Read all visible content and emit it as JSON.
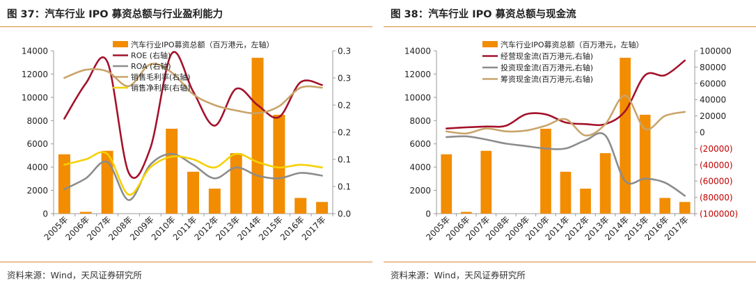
{
  "panels": [
    {
      "figure_title": "图 37：汽车行业 IPO 募资总额与行业盈利能力",
      "source": "资料来源：Wind，天风证券研究所"
    },
    {
      "figure_title": "图 38：汽车行业 IPO 募资总额与现金流",
      "source": "资料来源：Wind，天风证券研究所"
    }
  ],
  "colors": {
    "bar": "#f28c00",
    "rule": "#d88a3a",
    "roe": "#a3112b",
    "roa": "#8c8c8c",
    "gross": "#c8a46a",
    "net": "#f5d000",
    "operating": "#a3112b",
    "investing": "#8c8c8c",
    "financing": "#c8a46a",
    "neg_label": "#c00000"
  },
  "chart_data": [
    {
      "type": "bar",
      "categories": [
        "2005年",
        "2006年",
        "2007年",
        "2008年",
        "2009年",
        "2010年",
        "2011年",
        "2012年",
        "2013年",
        "2014年",
        "2015年",
        "2016年",
        "2017年"
      ],
      "bars": {
        "name": "汽车行业IPO募资总额（百万港元，左轴）",
        "values": [
          5100,
          150,
          5400,
          0,
          0,
          7300,
          3600,
          2150,
          5200,
          13400,
          8500,
          1350,
          1000
        ]
      },
      "lines": [
        {
          "name": "ROE (右轴)",
          "color_key": "roe",
          "values": [
            0.175,
            0.24,
            0.28,
            0.075,
            0.12,
            0.295,
            0.225,
            0.162,
            0.23,
            0.2,
            0.178,
            0.242,
            0.237
          ]
        },
        {
          "name": "ROA (右轴)",
          "color_key": "roa",
          "values": [
            0.045,
            0.065,
            0.095,
            0.025,
            0.09,
            0.11,
            0.09,
            0.065,
            0.085,
            0.07,
            0.065,
            0.075,
            0.07
          ]
        },
        {
          "name": "销售毛利率(右轴)",
          "color_key": "gross",
          "values": [
            0.25,
            0.265,
            0.262,
            0.235,
            0.275,
            0.26,
            0.22,
            0.2,
            0.19,
            0.185,
            0.198,
            0.232,
            0.232
          ]
        },
        {
          "name": "销售净利率(右轴)",
          "color_key": "net",
          "values": [
            0.09,
            0.1,
            0.11,
            0.035,
            0.085,
            0.105,
            0.1,
            0.085,
            0.11,
            0.095,
            0.085,
            0.09,
            0.085
          ]
        }
      ],
      "y_left": {
        "min": 0,
        "max": 14000,
        "ticks": [
          "0",
          "2000",
          "4000",
          "6000",
          "8000",
          "10000",
          "12000",
          "14000"
        ]
      },
      "y_right": {
        "min": 0,
        "max": 0.3,
        "ticks": [
          "0.0",
          "0.1",
          "0.1",
          "0.2",
          "0.2",
          "0.3",
          "0.3"
        ]
      },
      "legend_position": "top-right",
      "grid": false
    },
    {
      "type": "bar",
      "categories": [
        "2005年",
        "2006年",
        "2007年",
        "2008年",
        "2009年",
        "2010年",
        "2011年",
        "2012年",
        "2013年",
        "2014年",
        "2015年",
        "2016年",
        "2017年"
      ],
      "bars": {
        "name": "汽车行业IPO募资总额（百万港元，左轴）",
        "values": [
          5100,
          150,
          5400,
          0,
          0,
          7300,
          3600,
          2150,
          5200,
          13400,
          8500,
          1350,
          1000
        ]
      },
      "lines": [
        {
          "name": "经营现金流(百万港元,右轴)",
          "color_key": "operating",
          "values": [
            4500,
            6000,
            7000,
            8000,
            22000,
            22000,
            12000,
            10000,
            10000,
            26000,
            70000,
            70000,
            88000
          ]
        },
        {
          "name": "投资现金流(百万港元,右轴)",
          "color_key": "investing",
          "values": [
            -6000,
            -5000,
            -9000,
            -14000,
            -17000,
            -20000,
            -20000,
            -10000,
            -4000,
            -60000,
            -57000,
            -62000,
            -78000
          ]
        },
        {
          "name": "筹资现金流(百万港元,右轴)",
          "color_key": "financing",
          "values": [
            1000,
            -1500,
            4500,
            1000,
            2000,
            8000,
            16000,
            -4000,
            10000,
            45000,
            4000,
            20000,
            25000
          ]
        }
      ],
      "y_left": {
        "min": 0,
        "max": 14000,
        "ticks": [
          "0",
          "2000",
          "4000",
          "6000",
          "8000",
          "10000",
          "12000",
          "14000"
        ]
      },
      "y_right": {
        "min": -100000,
        "max": 100000,
        "ticks": [
          "(100000)",
          "(80000)",
          "(60000)",
          "(40000)",
          "(20000)",
          "0",
          "20000",
          "40000",
          "60000",
          "80000",
          "100000"
        ]
      },
      "legend_position": "top-center",
      "grid": false
    }
  ]
}
